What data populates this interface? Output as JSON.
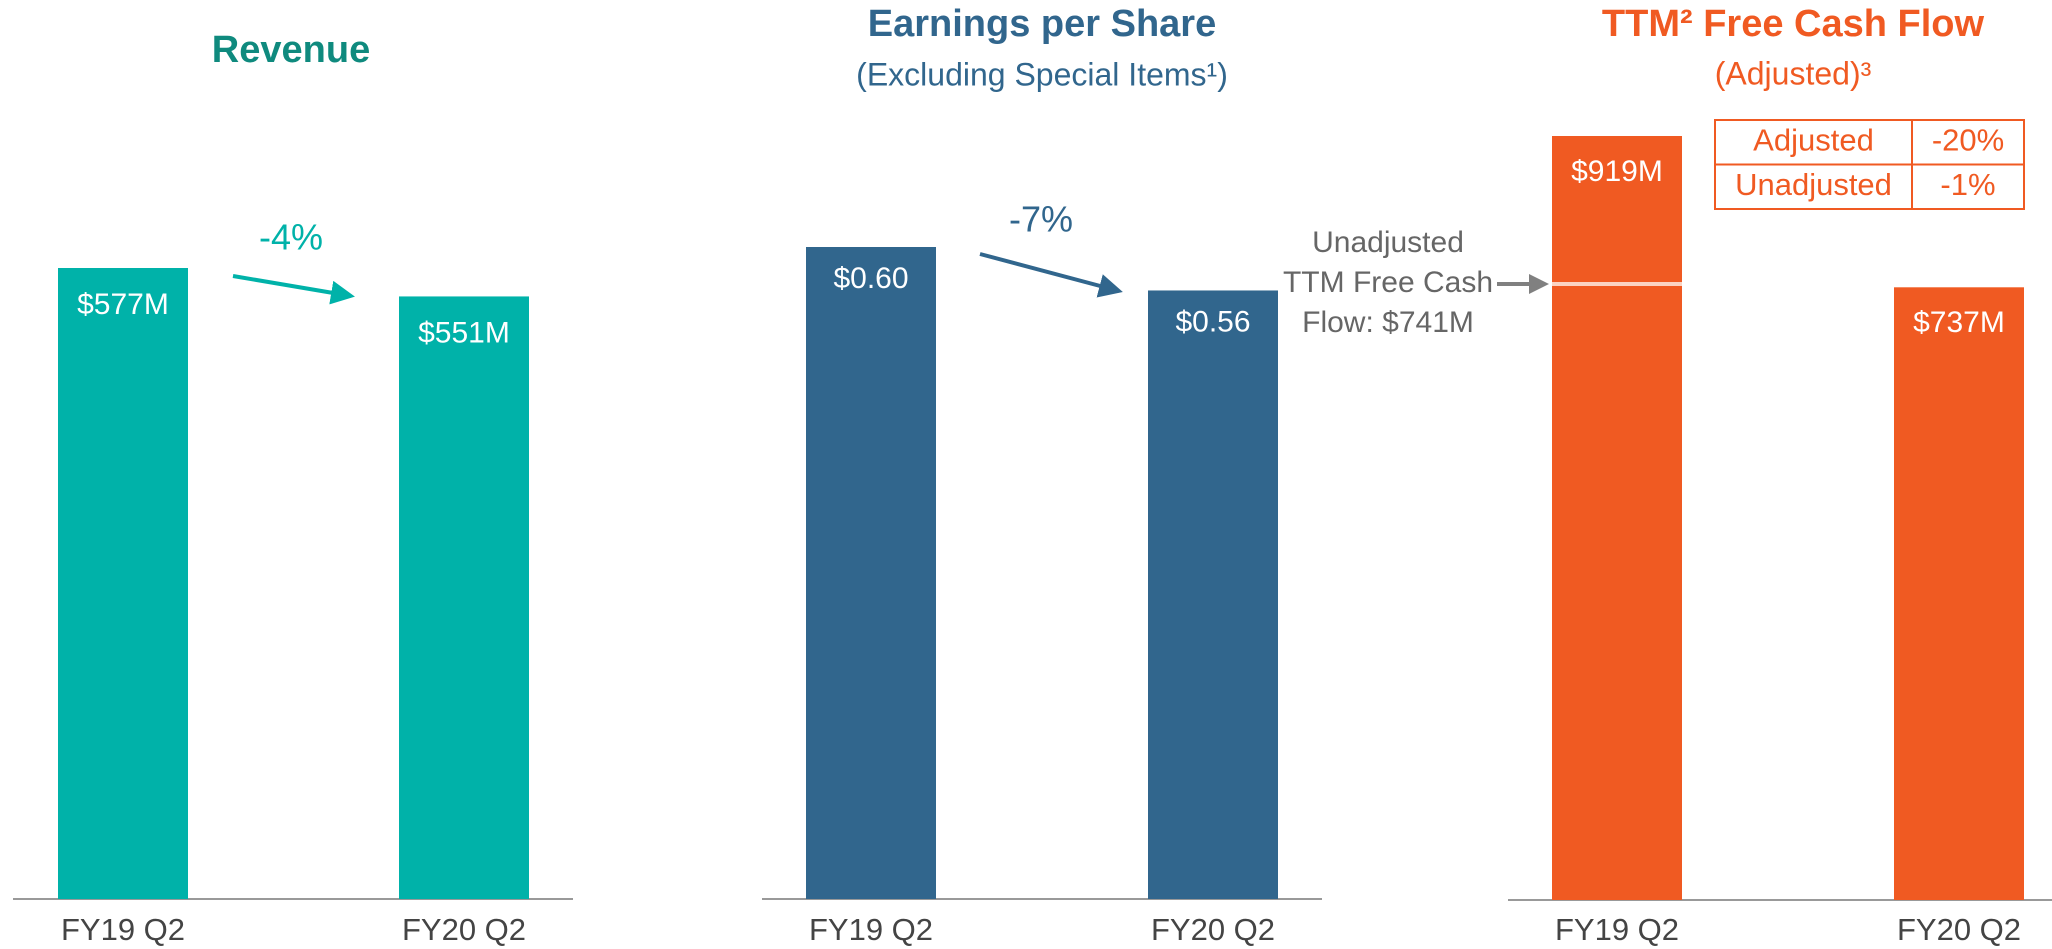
{
  "chart_data": [
    {
      "type": "bar",
      "title": "Revenue",
      "categories": [
        "FY19 Q2",
        "FY20 Q2"
      ],
      "values": [
        577,
        551
      ],
      "value_labels": [
        "$577M",
        "$551M"
      ],
      "color": "#00b2a9",
      "title_color": "#0f8a7e",
      "annotation": "-4%"
    },
    {
      "type": "bar",
      "title": "Earnings per Share",
      "subtitle": "(Excluding Special Items¹)",
      "categories": [
        "FY19 Q2",
        "FY20 Q2"
      ],
      "values": [
        0.6,
        0.56
      ],
      "value_labels": [
        "$0.60",
        "$0.56"
      ],
      "color": "#31668d",
      "title_color": "#31668d",
      "annotation": "-7%"
    },
    {
      "type": "bar",
      "title": "TTM² Free Cash Flow",
      "subtitle": "(Adjusted)³",
      "categories": [
        "FY19 Q2",
        "FY20 Q2"
      ],
      "values": [
        919,
        737
      ],
      "value_labels": [
        "$919M",
        "$737M"
      ],
      "color": "#f05a22",
      "title_color": "#f05a22",
      "marker": {
        "value": 741,
        "label": [
          "Unadjusted",
          "TTM Free Cash",
          "Flow: $741M"
        ]
      },
      "table": [
        [
          "Adjusted",
          "-20%"
        ],
        [
          "Unadjusted",
          "-1%"
        ]
      ]
    }
  ]
}
